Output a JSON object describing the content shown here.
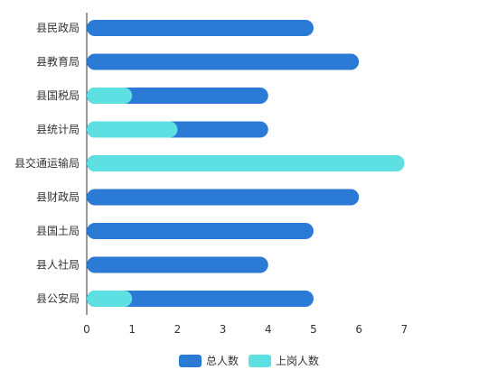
{
  "chart_data": {
    "type": "bar",
    "orientation": "horizontal",
    "layout": "overlay",
    "categories": [
      "县民政局",
      "县教育局",
      "县国税局",
      "县统计局",
      "县交通运输局",
      "县财政局",
      "县国土局",
      "县人社局",
      "县公安局"
    ],
    "series": [
      {
        "name": "总人数",
        "color": "#2b7bd6",
        "values": [
          5,
          6,
          4,
          4,
          7,
          6,
          5,
          4,
          5
        ]
      },
      {
        "name": "上岗人数",
        "color": "#5ee0e3",
        "values": [
          0,
          0,
          1,
          2,
          7,
          0,
          0,
          0,
          1
        ]
      }
    ],
    "xlim": [
      0,
      7
    ],
    "xticks": [
      0,
      1,
      2,
      3,
      4,
      5,
      6,
      7
    ],
    "grid": false,
    "legend": "bottom-center"
  }
}
